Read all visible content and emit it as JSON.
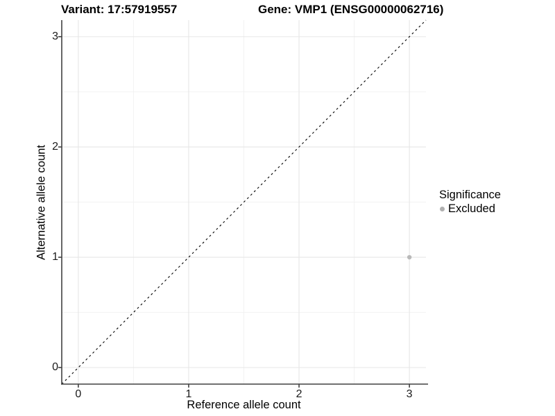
{
  "figure": {
    "title_left": "Variant: 17:57919557",
    "title_right": "Gene: VMP1 (ENSG00000062716)"
  },
  "chart_data": {
    "type": "scatter",
    "title": "Variant: 17:57919557  /  Gene: VMP1 (ENSG00000062716)",
    "xlabel": "Reference allele count",
    "ylabel": "Alternative allele count",
    "xlim": [
      -0.15,
      3.15
    ],
    "ylim": [
      -0.15,
      3.15
    ],
    "x_ticks": [
      0,
      1,
      2,
      3
    ],
    "y_ticks": [
      0,
      1,
      2,
      3
    ],
    "x_minor_gridlines": [
      0.5,
      1.5,
      2.5
    ],
    "y_minor_gridlines": [
      0.5,
      1.5,
      2.5
    ],
    "grid": "major+minor",
    "reference_line": {
      "equation": "y = x",
      "style": "dashed",
      "color": "#000000"
    },
    "series": [
      {
        "name": "Excluded",
        "color": "#b9b9b9",
        "points": [
          {
            "x": 3,
            "y": 1
          }
        ]
      }
    ],
    "legend": {
      "title": "Significance",
      "position": "right",
      "entries": [
        {
          "label": "Excluded",
          "color": "#b0b0b0"
        }
      ]
    },
    "colors": {
      "major_grid": "#e6e6e6",
      "minor_grid": "#f2f2f2",
      "axis_line": "#404040"
    }
  }
}
